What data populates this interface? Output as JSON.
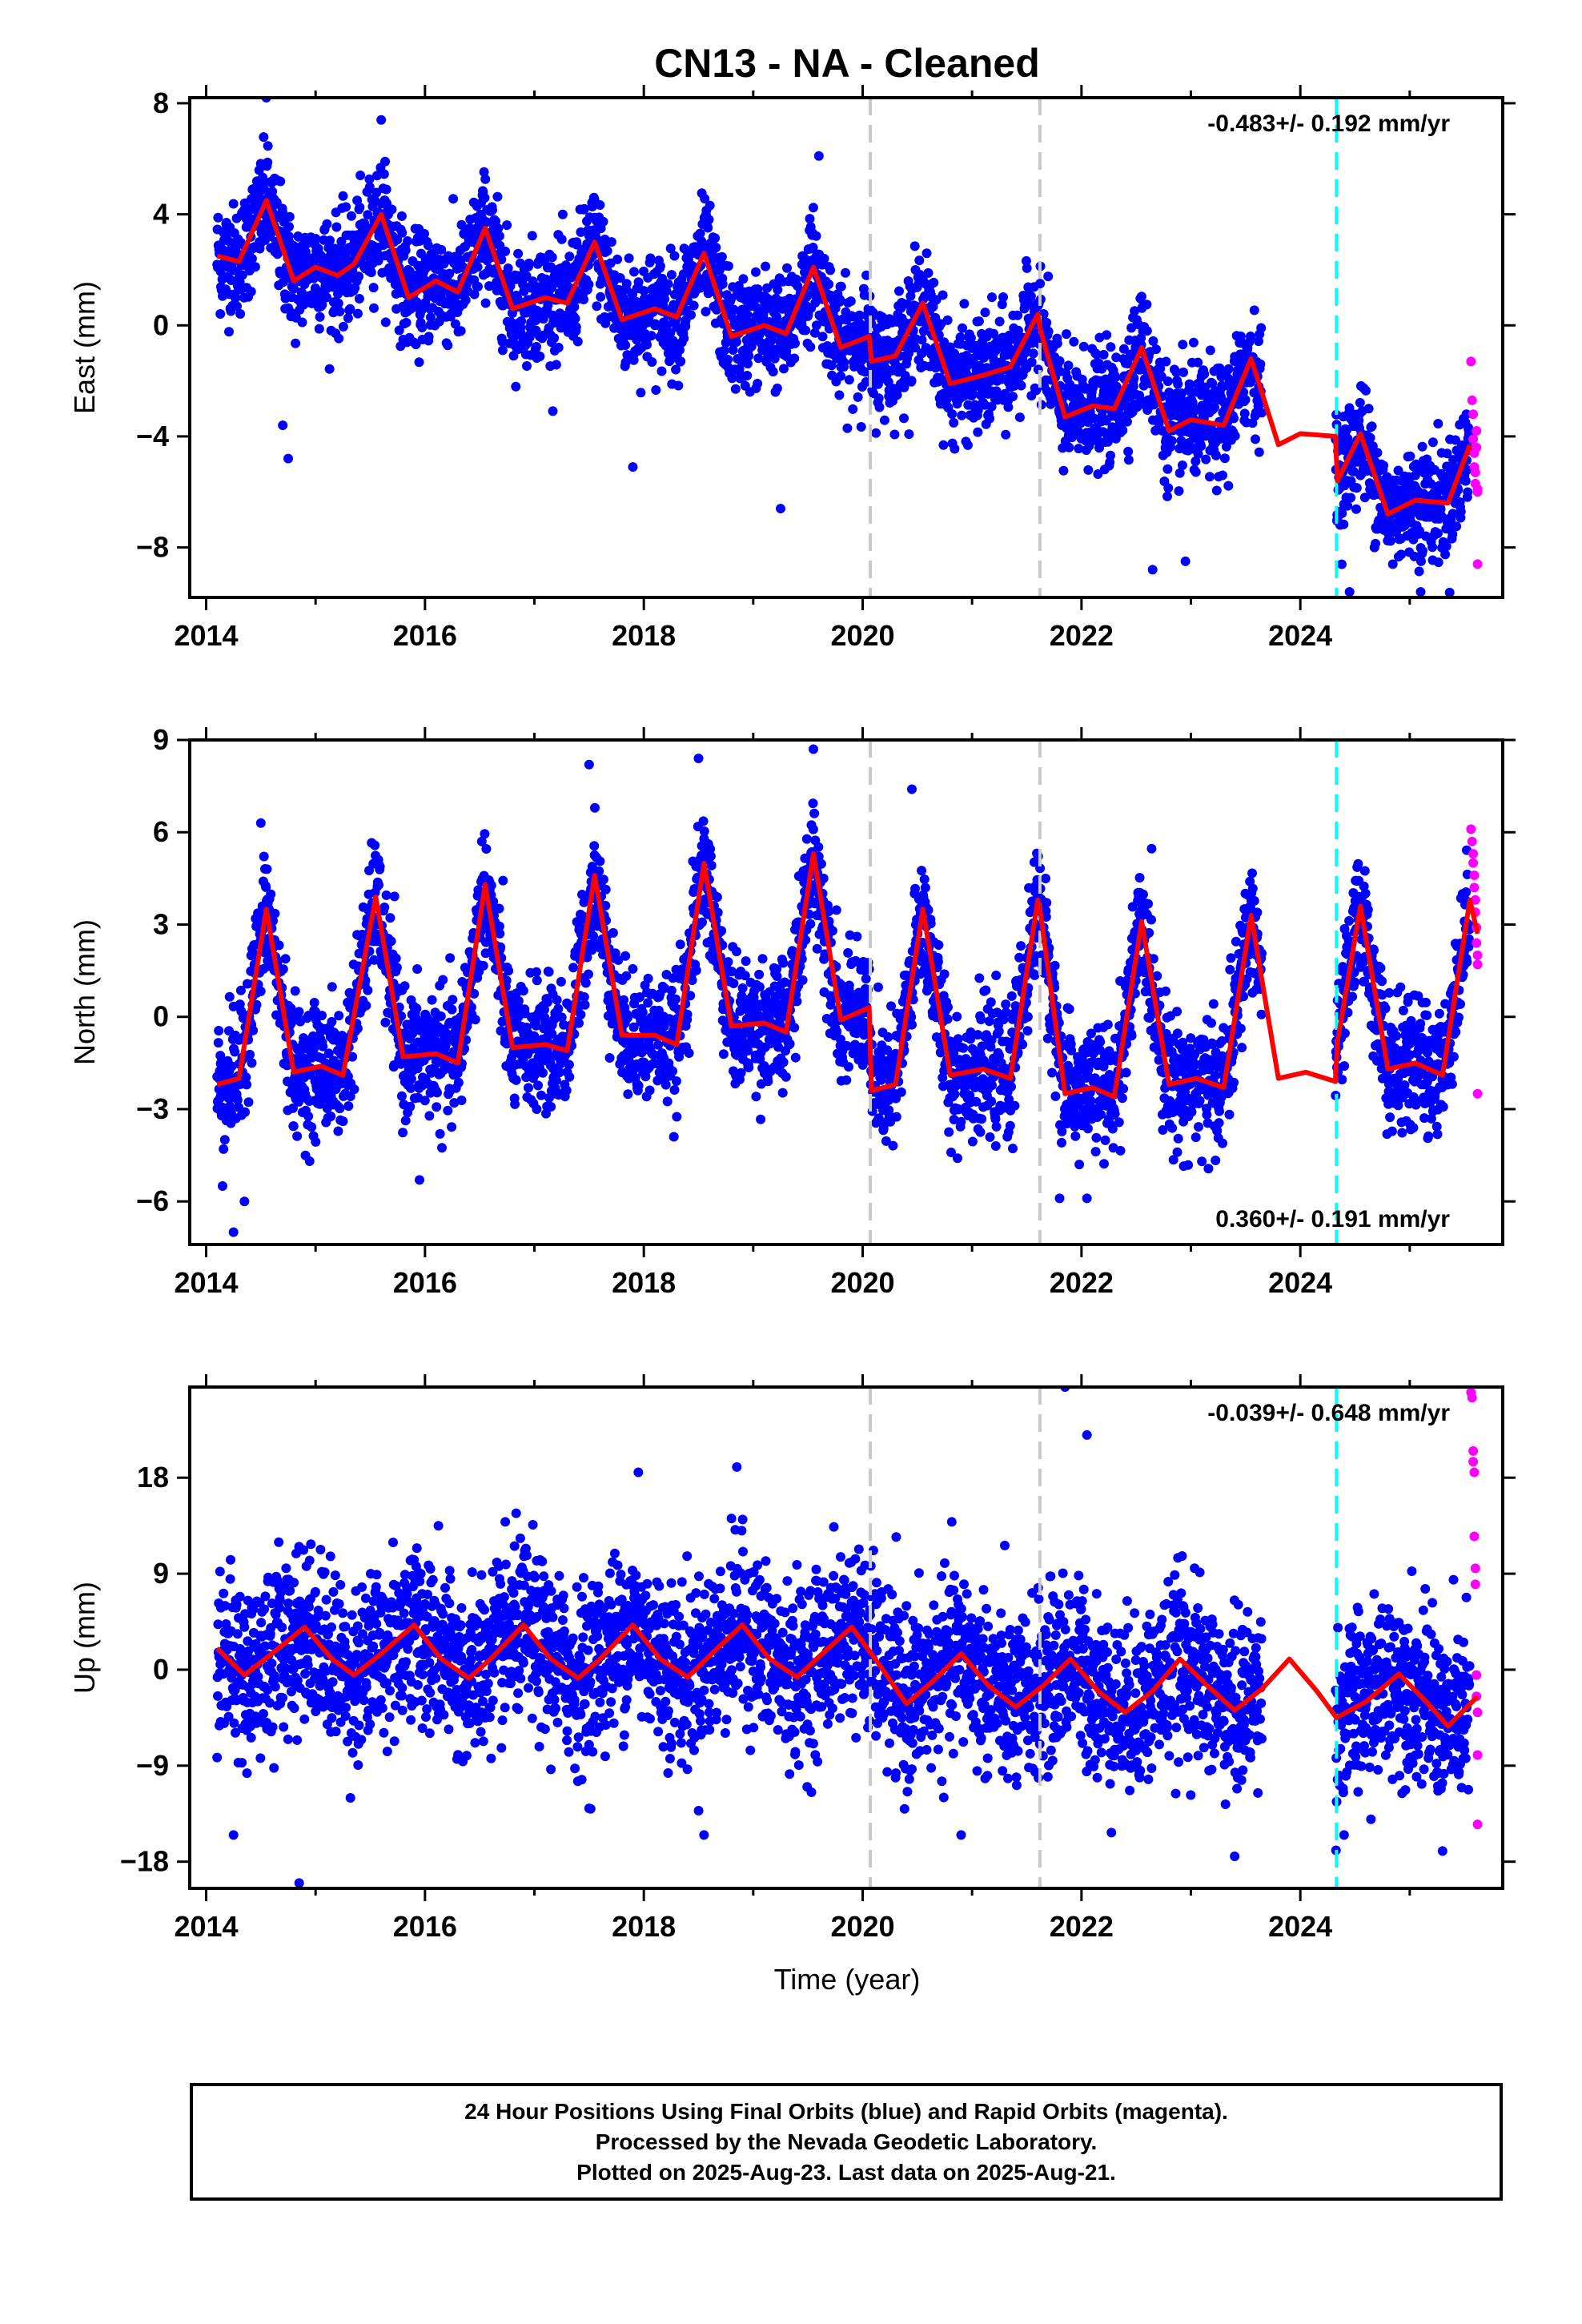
{
  "title": "CN13  - NA - Cleaned",
  "xlabel": "Time (year)",
  "footer": {
    "lines": [
      "24 Hour Positions Using Final Orbits (blue) and Rapid Orbits (magenta).",
      "Processed by the Nevada Geodetic Laboratory.",
      "Plotted on 2025-Aug-23. Last data on 2025-Aug-21."
    ]
  },
  "colors": {
    "final_points": "#0000ff",
    "rapid_points": "#ff00ff",
    "model_curve": "#ff0000",
    "gray_dashed": "#c8c8c8",
    "cyan_dashed": "#00ffff"
  },
  "chart_data": [
    {
      "type": "scatter",
      "component": "East",
      "ylabel": "East (mm)",
      "rate_label": "-0.483+/- 0.192 mm/yr",
      "rate_position": "top-right",
      "xlim": [
        2013.85,
        2025.85
      ],
      "ylim": [
        -9.8,
        8.2
      ],
      "xticks": [
        2014,
        2016,
        2018,
        2020,
        2022,
        2024
      ],
      "yticks": [
        -8,
        -4,
        0,
        4,
        8
      ],
      "gray_dashed_lines_x": [
        2020.07,
        2021.62
      ],
      "cyan_dashed_line_x": 2024.33,
      "model_curve": {
        "x": [
          2014.1,
          2014.3,
          2014.55,
          2014.8,
          2015.0,
          2015.2,
          2015.35,
          2015.6,
          2015.85,
          2016.1,
          2016.3,
          2016.55,
          2016.8,
          2017.1,
          2017.3,
          2017.55,
          2017.8,
          2018.1,
          2018.3,
          2018.55,
          2018.8,
          2019.1,
          2019.3,
          2019.55,
          2019.8,
          2020.06,
          2020.08,
          2020.3,
          2020.55,
          2020.8,
          2021.1,
          2021.35,
          2021.6,
          2021.62,
          2021.85,
          2022.1,
          2022.3,
          2022.55,
          2022.8,
          2023.0,
          2023.3,
          2023.55,
          2023.8,
          2024.0,
          2024.32,
          2024.34,
          2024.55,
          2024.8,
          2025.05,
          2025.35,
          2025.55
        ],
        "y": [
          2.5,
          2.3,
          4.5,
          1.6,
          2.1,
          1.8,
          2.2,
          4.0,
          1.0,
          1.6,
          1.2,
          3.5,
          0.6,
          1.0,
          0.8,
          3.0,
          0.2,
          0.6,
          0.3,
          2.6,
          -0.4,
          0.0,
          -0.3,
          2.1,
          -0.8,
          -0.4,
          -1.3,
          -1.1,
          0.8,
          -2.1,
          -1.8,
          -1.5,
          0.4,
          -0.1,
          -3.3,
          -2.9,
          -3.0,
          -0.8,
          -3.8,
          -3.4,
          -3.6,
          -1.2,
          -4.3,
          -3.9,
          -4.0,
          -5.6,
          -3.9,
          -6.8,
          -6.3,
          -6.4,
          -4.3
        ]
      },
      "final_orbit_points": {
        "x_range": [
          2014.1,
          2025.55
        ],
        "gap": [
          2023.65,
          2024.32
        ],
        "approx_count": 3900,
        "typical_scatter_mm": 1.0,
        "outliers": [
          [
            2014.7,
            -3.6
          ],
          [
            2014.75,
            -4.8
          ],
          [
            2017.9,
            -5.1
          ],
          [
            2019.25,
            -6.6
          ],
          [
            2019.6,
            6.1
          ],
          [
            2022.65,
            -8.8
          ],
          [
            2022.95,
            -8.5
          ],
          [
            2024.45,
            -9.6
          ],
          [
            2025.1,
            -9.6
          ],
          [
            2014.55,
            8.2
          ],
          [
            2015.6,
            7.4
          ]
        ]
      },
      "rapid_orbit_points": {
        "x": [
          2025.56,
          2025.57,
          2025.58,
          2025.58,
          2025.59,
          2025.59,
          2025.6,
          2025.6,
          2025.61,
          2025.61,
          2025.62,
          2025.62,
          2025.62
        ],
        "y": [
          -1.3,
          -2.7,
          -3.2,
          -4.1,
          -4.6,
          -5.1,
          -5.3,
          -5.7,
          -4.4,
          -3.8,
          -5.9,
          -6.0,
          -8.6
        ]
      }
    },
    {
      "type": "scatter",
      "component": "North",
      "ylabel": "North (mm)",
      "rate_label": "0.360+/- 0.191 mm/yr",
      "rate_position": "bottom-right",
      "xlim": [
        2013.85,
        2025.85
      ],
      "ylim": [
        -7.4,
        9.0
      ],
      "xticks": [
        2014,
        2016,
        2018,
        2020,
        2022,
        2024
      ],
      "yticks": [
        -6,
        -3,
        0,
        3,
        6,
        9
      ],
      "gray_dashed_lines_x": [
        2020.07,
        2021.62
      ],
      "cyan_dashed_line_x": 2024.33,
      "model_curve": {
        "x": [
          2014.1,
          2014.3,
          2014.55,
          2014.8,
          2015.05,
          2015.25,
          2015.55,
          2015.8,
          2016.1,
          2016.3,
          2016.55,
          2016.8,
          2017.1,
          2017.3,
          2017.55,
          2017.8,
          2018.1,
          2018.3,
          2018.55,
          2018.8,
          2019.1,
          2019.3,
          2019.55,
          2019.8,
          2020.06,
          2020.08,
          2020.3,
          2020.55,
          2020.8,
          2021.1,
          2021.35,
          2021.6,
          2021.62,
          2021.85,
          2022.1,
          2022.3,
          2022.55,
          2022.8,
          2023.05,
          2023.3,
          2023.55,
          2023.8,
          2024.05,
          2024.32,
          2024.34,
          2024.55,
          2024.8,
          2025.05,
          2025.3,
          2025.55,
          2025.62
        ],
        "y": [
          -2.2,
          -2.0,
          3.5,
          -1.8,
          -1.6,
          -1.9,
          3.9,
          -1.3,
          -1.2,
          -1.5,
          4.3,
          -1.0,
          -0.9,
          -1.1,
          4.6,
          -0.6,
          -0.6,
          -0.9,
          5.0,
          -0.3,
          -0.2,
          -0.5,
          5.3,
          -0.1,
          0.3,
          -2.4,
          -2.2,
          3.5,
          -1.9,
          -1.7,
          -2.0,
          3.8,
          3.5,
          -2.5,
          -2.3,
          -2.6,
          3.1,
          -2.2,
          -2.0,
          -2.3,
          3.3,
          -2.0,
          -1.8,
          -2.1,
          -0.8,
          3.6,
          -1.7,
          -1.5,
          -1.9,
          3.8,
          2.7
        ]
      },
      "final_orbit_points": {
        "x_range": [
          2014.1,
          2025.55
        ],
        "gap": [
          2023.65,
          2024.32
        ],
        "approx_count": 3900,
        "typical_scatter_mm": 1.0,
        "outliers": [
          [
            2014.15,
            -5.5
          ],
          [
            2014.25,
            -7.0
          ],
          [
            2014.35,
            -6.0
          ],
          [
            2014.5,
            6.3
          ],
          [
            2015.95,
            -5.3
          ],
          [
            2017.5,
            8.2
          ],
          [
            2018.5,
            8.4
          ],
          [
            2019.55,
            8.7
          ],
          [
            2020.45,
            7.4
          ],
          [
            2021.8,
            -5.9
          ],
          [
            2022.05,
            -5.9
          ],
          [
            2023.1,
            -4.7
          ]
        ]
      },
      "rapid_orbit_points": {
        "x": [
          2025.56,
          2025.57,
          2025.58,
          2025.58,
          2025.59,
          2025.59,
          2025.6,
          2025.6,
          2025.61,
          2025.61,
          2025.62,
          2025.62,
          2025.62
        ],
        "y": [
          6.1,
          5.7,
          5.3,
          5.0,
          4.6,
          4.2,
          3.8,
          3.4,
          2.9,
          2.4,
          2.0,
          1.7,
          -2.5
        ]
      }
    },
    {
      "type": "scatter",
      "component": "Up",
      "ylabel": "Up (mm)",
      "rate_label": "-0.039+/- 0.648 mm/yr",
      "rate_position": "top-right",
      "xlim": [
        2013.85,
        2025.85
      ],
      "ylim": [
        -20.5,
        26.5
      ],
      "xticks": [
        2014,
        2016,
        2018,
        2020,
        2022,
        2024
      ],
      "yticks": [
        -18,
        -9,
        0,
        9,
        18
      ],
      "gray_dashed_lines_x": [
        2020.07,
        2021.62
      ],
      "cyan_dashed_line_x": 2024.33,
      "model_curve": {
        "x": [
          2014.1,
          2014.35,
          2014.6,
          2014.9,
          2015.15,
          2015.35,
          2015.6,
          2015.9,
          2016.15,
          2016.4,
          2016.6,
          2016.9,
          2017.15,
          2017.4,
          2017.6,
          2017.9,
          2018.15,
          2018.4,
          2018.6,
          2018.9,
          2019.15,
          2019.4,
          2019.6,
          2019.9,
          2020.15,
          2020.4,
          2020.65,
          2020.9,
          2021.15,
          2021.4,
          2021.65,
          2021.9,
          2022.15,
          2022.4,
          2022.65,
          2022.9,
          2023.15,
          2023.4,
          2023.65,
          2023.9,
          2024.15,
          2024.33,
          2024.6,
          2024.9,
          2025.15,
          2025.35,
          2025.62
        ],
        "y": [
          2.0,
          -0.5,
          1.5,
          4.0,
          1.0,
          -0.5,
          1.5,
          4.2,
          1.0,
          -0.8,
          1.0,
          4.2,
          1.0,
          -0.8,
          1.0,
          4.2,
          1.0,
          -0.7,
          1.3,
          4.2,
          1.0,
          -0.7,
          1.2,
          4.0,
          0.5,
          -3.2,
          -1.0,
          1.5,
          -1.5,
          -3.5,
          -1.5,
          1.0,
          -2.0,
          -4.0,
          -2.0,
          1.0,
          -1.5,
          -3.8,
          -1.8,
          1.0,
          -2.0,
          -4.5,
          -3.0,
          -0.4,
          -3.0,
          -5.3,
          -2.5
        ]
      },
      "final_orbit_points": {
        "x_range": [
          2014.1,
          2025.55
        ],
        "gap": [
          2023.65,
          2024.32
        ],
        "approx_count": 3900,
        "typical_scatter_mm": 4.0,
        "outliers": [
          [
            2014.25,
            -15.5
          ],
          [
            2014.85,
            -20.0
          ],
          [
            2017.5,
            -13.0
          ],
          [
            2017.95,
            18.5
          ],
          [
            2018.55,
            -15.5
          ],
          [
            2018.85,
            19.0
          ],
          [
            2020.9,
            -15.5
          ],
          [
            2021.85,
            26.5
          ],
          [
            2022.05,
            22.0
          ],
          [
            2023.4,
            -17.5
          ],
          [
            2024.4,
            -15.5
          ],
          [
            2025.3,
            -17.0
          ]
        ]
      },
      "rapid_orbit_points": {
        "x": [
          2025.56,
          2025.57,
          2025.58,
          2025.58,
          2025.59,
          2025.59,
          2025.6,
          2025.6,
          2025.61,
          2025.61,
          2025.62,
          2025.62,
          2025.62
        ],
        "y": [
          26.0,
          25.5,
          20.5,
          19.5,
          18.5,
          12.5,
          9.5,
          8.0,
          -0.5,
          -2.5,
          -4.0,
          -8.0,
          -14.5
        ]
      }
    }
  ]
}
